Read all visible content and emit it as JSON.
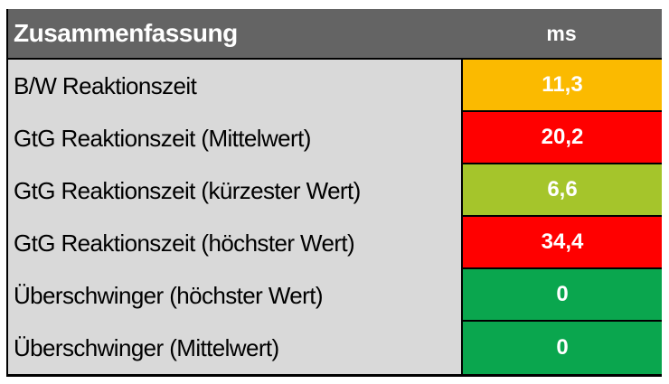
{
  "table": {
    "title": "Zusammenfassung",
    "unit_header": "ms",
    "colors": {
      "header_bg": "#646464",
      "header_text": "#FFFFFF",
      "label_bg": "#D9D9D9",
      "label_text": "#000000",
      "value_text": "#FFFFFF",
      "border": "#000000",
      "warning": "#FBBA00",
      "bad": "#FF0000",
      "acceptable": "#A5C52B",
      "good": "#0AA64E"
    }
  },
  "chart_data": {
    "type": "table",
    "title": "Zusammenfassung",
    "unit": "ms",
    "columns": [
      "Zusammenfassung",
      "ms"
    ],
    "rows": [
      {
        "label": "B/W Reaktionszeit",
        "value": 11.3,
        "display": "11,3",
        "rating": "warning"
      },
      {
        "label": "GtG Reaktionszeit (Mittelwert)",
        "value": 20.2,
        "display": "20,2",
        "rating": "bad"
      },
      {
        "label": "GtG Reaktionszeit (kürzester Wert)",
        "value": 6.6,
        "display": "6,6",
        "rating": "acceptable"
      },
      {
        "label": "GtG Reaktionszeit (höchster Wert)",
        "value": 34.4,
        "display": "34,4",
        "rating": "bad"
      },
      {
        "label": "Überschwinger (höchster Wert)",
        "value": 0,
        "display": "0",
        "rating": "good"
      },
      {
        "label": "Überschwinger (Mittelwert)",
        "value": 0,
        "display": "0",
        "rating": "good"
      }
    ]
  }
}
